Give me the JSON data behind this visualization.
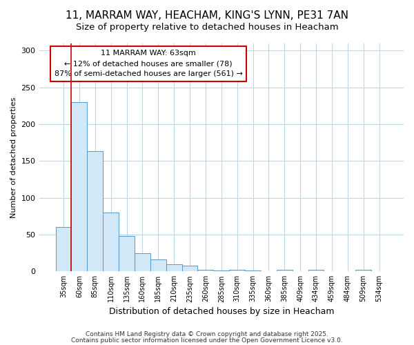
{
  "title_line1": "11, MARRAM WAY, HEACHAM, KING'S LYNN, PE31 7AN",
  "title_line2": "Size of property relative to detached houses in Heacham",
  "xlabel": "Distribution of detached houses by size in Heacham",
  "ylabel": "Number of detached properties",
  "bar_color": "#d0e8f8",
  "bar_edge_color": "#5599cc",
  "vline_color": "#cc0000",
  "annotation_text": "11 MARRAM WAY: 63sqm\n← 12% of detached houses are smaller (78)\n87% of semi-detached houses are larger (561) →",
  "annotation_box_color": "#ffffff",
  "annotation_box_edge_color": "#cc0000",
  "footer_line1": "Contains HM Land Registry data © Crown copyright and database right 2025.",
  "footer_line2": "Contains public sector information licensed under the Open Government Licence v3.0.",
  "categories": [
    "35sqm",
    "60sqm",
    "85sqm",
    "110sqm",
    "135sqm",
    "160sqm",
    "185sqm",
    "210sqm",
    "235sqm",
    "260sqm",
    "285sqm",
    "310sqm",
    "335sqm",
    "360sqm",
    "385sqm",
    "409sqm",
    "434sqm",
    "459sqm",
    "484sqm",
    "509sqm",
    "534sqm"
  ],
  "values": [
    60,
    230,
    163,
    80,
    48,
    25,
    16,
    10,
    8,
    2,
    1,
    2,
    1,
    0,
    2,
    0,
    2,
    0,
    0,
    2,
    0
  ],
  "ylim": [
    0,
    310
  ],
  "yticks": [
    0,
    50,
    100,
    150,
    200,
    250,
    300
  ],
  "background_color": "#ffffff",
  "plot_background_color": "#ffffff",
  "grid_color": "#b8d4e8",
  "title_fontsize": 11,
  "subtitle_fontsize": 9.5,
  "figsize": [
    6.0,
    5.0
  ],
  "dpi": 100
}
